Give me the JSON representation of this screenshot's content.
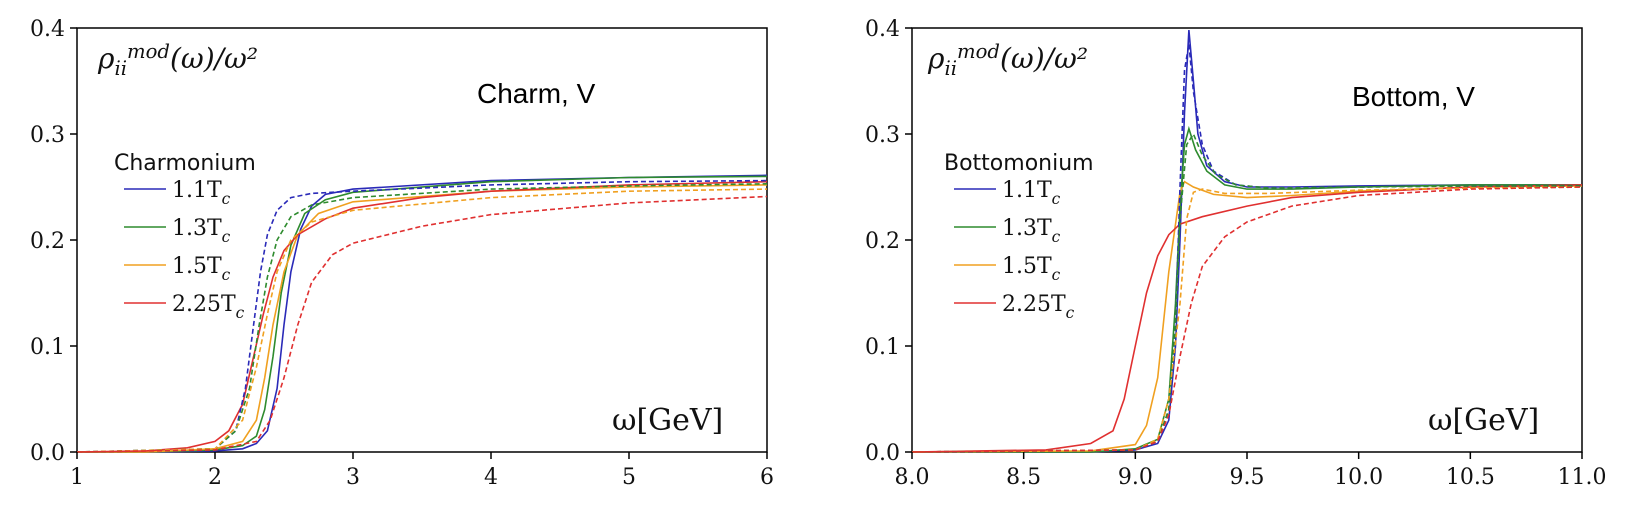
{
  "chart_data": [
    {
      "type": "line",
      "ylabel": "ρ_ii^mod(ω)/ω²",
      "xlabel": "ω[GeV]",
      "annotation": "Charm, V",
      "legend_title": "Charmonium",
      "legend_position": "left",
      "xlim": [
        1,
        6
      ],
      "ylim": [
        0,
        0.4
      ],
      "xticks": [
        "1",
        "2",
        "3",
        "4",
        "5",
        "6"
      ],
      "yticks": [
        "0.0",
        "0.1",
        "0.2",
        "0.3",
        "0.4"
      ],
      "series": [
        {
          "name": "1.1T_c",
          "color": "#2a2ab8",
          "style": "solid",
          "x": [
            1.0,
            1.5,
            2.0,
            2.2,
            2.3,
            2.38,
            2.45,
            2.5,
            2.55,
            2.62,
            2.7,
            2.8,
            3.0,
            4.0,
            5.0,
            6.0
          ],
          "y": [
            0.0,
            0.0,
            0.001,
            0.003,
            0.008,
            0.02,
            0.06,
            0.12,
            0.17,
            0.21,
            0.232,
            0.243,
            0.248,
            0.256,
            0.259,
            0.261
          ]
        },
        {
          "name": "1.3T_c",
          "color": "#2e8b2e",
          "style": "solid",
          "x": [
            1.0,
            1.5,
            2.0,
            2.2,
            2.3,
            2.36,
            2.42,
            2.48,
            2.55,
            2.65,
            2.8,
            3.0,
            4.0,
            5.0,
            6.0
          ],
          "y": [
            0.0,
            0.0,
            0.002,
            0.006,
            0.015,
            0.04,
            0.09,
            0.15,
            0.195,
            0.225,
            0.238,
            0.245,
            0.255,
            0.259,
            0.26
          ]
        },
        {
          "name": "1.5T_c",
          "color": "#f0a020",
          "style": "solid",
          "x": [
            1.0,
            1.5,
            2.0,
            2.2,
            2.3,
            2.36,
            2.42,
            2.5,
            2.6,
            2.75,
            3.0,
            4.0,
            5.0,
            6.0
          ],
          "y": [
            0.0,
            0.0,
            0.003,
            0.01,
            0.03,
            0.07,
            0.12,
            0.17,
            0.205,
            0.225,
            0.236,
            0.246,
            0.25,
            0.252
          ]
        },
        {
          "name": "2.25T_c",
          "color": "#e03030",
          "style": "solid",
          "x": [
            1.0,
            1.5,
            1.8,
            2.0,
            2.1,
            2.2,
            2.28,
            2.35,
            2.42,
            2.5,
            2.6,
            2.8,
            3.0,
            3.5,
            4.0,
            5.0,
            6.0
          ],
          "y": [
            0.0,
            0.001,
            0.004,
            0.01,
            0.02,
            0.045,
            0.09,
            0.13,
            0.165,
            0.19,
            0.205,
            0.22,
            0.23,
            0.24,
            0.246,
            0.252,
            0.255
          ]
        },
        {
          "name": "",
          "color": "#2a2ab8",
          "style": "dashed",
          "x": [
            1.0,
            2.0,
            2.15,
            2.22,
            2.28,
            2.33,
            2.38,
            2.45,
            2.55,
            2.7,
            3.0,
            4.0,
            5.0,
            6.0
          ],
          "y": [
            0.0,
            0.003,
            0.02,
            0.06,
            0.12,
            0.17,
            0.205,
            0.228,
            0.24,
            0.244,
            0.246,
            0.252,
            0.255,
            0.256
          ]
        },
        {
          "name": "",
          "color": "#2e8b2e",
          "style": "dashed",
          "x": [
            1.0,
            2.0,
            2.15,
            2.25,
            2.32,
            2.38,
            2.45,
            2.55,
            2.7,
            3.0,
            4.0,
            5.0,
            6.0
          ],
          "y": [
            0.0,
            0.003,
            0.02,
            0.06,
            0.12,
            0.165,
            0.2,
            0.222,
            0.233,
            0.24,
            0.248,
            0.251,
            0.253
          ]
        },
        {
          "name": "",
          "color": "#f0a020",
          "style": "dashed",
          "x": [
            1.0,
            2.0,
            2.2,
            2.3,
            2.38,
            2.45,
            2.55,
            2.7,
            3.0,
            4.0,
            5.0,
            6.0
          ],
          "y": [
            0.0,
            0.003,
            0.03,
            0.08,
            0.13,
            0.17,
            0.2,
            0.217,
            0.228,
            0.24,
            0.246,
            0.248
          ]
        },
        {
          "name": "",
          "color": "#e03030",
          "style": "dashed",
          "x": [
            1.0,
            2.0,
            2.3,
            2.4,
            2.5,
            2.6,
            2.7,
            2.85,
            3.0,
            3.5,
            4.0,
            5.0,
            6.0
          ],
          "y": [
            0.0,
            0.002,
            0.01,
            0.03,
            0.07,
            0.12,
            0.16,
            0.186,
            0.197,
            0.213,
            0.224,
            0.235,
            0.241
          ]
        }
      ]
    },
    {
      "type": "line",
      "ylabel": "ρ_ii^mod(ω)/ω²",
      "xlabel": "ω[GeV]",
      "annotation": "Bottom, V",
      "legend_title": "Bottomonium",
      "legend_position": "left",
      "xlim": [
        8.0,
        11.0
      ],
      "ylim": [
        0,
        0.4
      ],
      "xticks": [
        "8.0",
        "8.5",
        "9.0",
        "9.5",
        "10.0",
        "10.5",
        "11.0"
      ],
      "yticks": [
        "0.0",
        "0.1",
        "0.2",
        "0.3",
        "0.4"
      ],
      "series": [
        {
          "name": "1.1T_c",
          "color": "#2a2ab8",
          "style": "solid",
          "x": [
            8.0,
            8.8,
            9.0,
            9.1,
            9.15,
            9.18,
            9.2,
            9.22,
            9.24,
            9.26,
            9.28,
            9.32,
            9.4,
            9.5,
            9.7,
            10.0,
            10.5,
            11.0
          ],
          "y": [
            0.0,
            0.0,
            0.002,
            0.008,
            0.03,
            0.1,
            0.2,
            0.32,
            0.398,
            0.35,
            0.3,
            0.27,
            0.255,
            0.25,
            0.25,
            0.251,
            0.252,
            0.252
          ]
        },
        {
          "name": "1.3T_c",
          "color": "#2e8b2e",
          "style": "solid",
          "x": [
            8.0,
            8.8,
            9.0,
            9.1,
            9.15,
            9.18,
            9.2,
            9.22,
            9.24,
            9.27,
            9.32,
            9.4,
            9.5,
            9.7,
            10.0,
            10.5,
            11.0
          ],
          "y": [
            0.0,
            0.0,
            0.003,
            0.012,
            0.05,
            0.14,
            0.23,
            0.29,
            0.305,
            0.285,
            0.265,
            0.252,
            0.248,
            0.248,
            0.25,
            0.252,
            0.252
          ]
        },
        {
          "name": "1.5T_c",
          "color": "#f0a020",
          "style": "solid",
          "x": [
            8.0,
            8.8,
            9.0,
            9.05,
            9.1,
            9.15,
            9.2,
            9.22,
            9.26,
            9.35,
            9.5,
            9.7,
            10.0,
            10.5,
            11.0
          ],
          "y": [
            0.0,
            0.001,
            0.007,
            0.025,
            0.07,
            0.17,
            0.245,
            0.255,
            0.25,
            0.243,
            0.24,
            0.242,
            0.246,
            0.25,
            0.251
          ]
        },
        {
          "name": "2.25T_c",
          "color": "#e03030",
          "style": "solid",
          "x": [
            8.0,
            8.6,
            8.8,
            8.9,
            8.95,
            9.0,
            9.05,
            9.1,
            9.15,
            9.2,
            9.3,
            9.5,
            9.7,
            10.0,
            10.5,
            11.0
          ],
          "y": [
            0.0,
            0.002,
            0.008,
            0.02,
            0.05,
            0.1,
            0.15,
            0.185,
            0.205,
            0.215,
            0.222,
            0.232,
            0.24,
            0.245,
            0.25,
            0.252
          ]
        },
        {
          "name": "",
          "color": "#2a2ab8",
          "style": "dashed",
          "x": [
            8.0,
            9.0,
            9.1,
            9.15,
            9.18,
            9.2,
            9.22,
            9.24,
            9.26,
            9.3,
            9.35,
            9.45,
            9.6,
            10.0,
            10.5,
            11.0
          ],
          "y": [
            0.0,
            0.002,
            0.01,
            0.04,
            0.12,
            0.25,
            0.36,
            0.385,
            0.34,
            0.29,
            0.265,
            0.252,
            0.249,
            0.25,
            0.251,
            0.251
          ]
        },
        {
          "name": "",
          "color": "#2e8b2e",
          "style": "dashed",
          "x": [
            8.0,
            9.0,
            9.1,
            9.15,
            9.18,
            9.2,
            9.23,
            9.26,
            9.3,
            9.36,
            9.45,
            9.6,
            10.0,
            10.5,
            11.0
          ],
          "y": [
            0.0,
            0.002,
            0.01,
            0.04,
            0.12,
            0.22,
            0.29,
            0.3,
            0.28,
            0.262,
            0.252,
            0.249,
            0.25,
            0.251,
            0.251
          ]
        },
        {
          "name": "",
          "color": "#f0a020",
          "style": "dashed",
          "x": [
            8.0,
            9.0,
            9.1,
            9.15,
            9.2,
            9.23,
            9.26,
            9.3,
            9.4,
            9.6,
            10.0,
            10.5,
            11.0
          ],
          "y": [
            0.0,
            0.002,
            0.012,
            0.05,
            0.14,
            0.22,
            0.245,
            0.248,
            0.244,
            0.244,
            0.247,
            0.249,
            0.25
          ]
        },
        {
          "name": "",
          "color": "#e03030",
          "style": "dashed",
          "x": [
            8.0,
            9.0,
            9.1,
            9.15,
            9.2,
            9.25,
            9.3,
            9.4,
            9.5,
            9.7,
            10.0,
            10.5,
            11.0
          ],
          "y": [
            0.0,
            0.002,
            0.01,
            0.035,
            0.09,
            0.14,
            0.175,
            0.203,
            0.217,
            0.232,
            0.242,
            0.248,
            0.25
          ]
        }
      ]
    }
  ]
}
